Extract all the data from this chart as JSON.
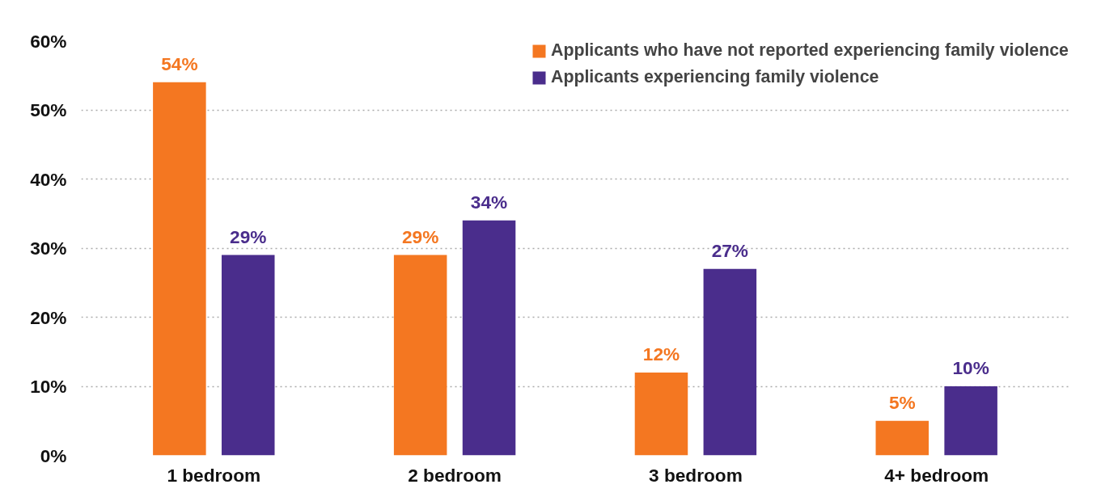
{
  "chart_data": {
    "type": "bar",
    "categories": [
      "1 bedroom",
      "2 bedroom",
      "3 bedroom",
      "4+ bedroom"
    ],
    "series": [
      {
        "name": "Applicants who have not reported experiencing family violence",
        "color": "#f47721",
        "values": [
          54,
          29,
          12,
          5
        ],
        "value_labels": [
          "54%",
          "29%",
          "12%",
          "5%"
        ]
      },
      {
        "name": "Applicants experiencing family violence",
        "color": "#4a2d8c",
        "values": [
          29,
          34,
          27,
          10
        ],
        "value_labels": [
          "29%",
          "34%",
          "27%",
          "10%"
        ]
      }
    ],
    "ylim": [
      0,
      60
    ],
    "yticks": [
      {
        "value": 0,
        "label": "0%"
      },
      {
        "value": 10,
        "label": "10%"
      },
      {
        "value": 20,
        "label": "20%"
      },
      {
        "value": 30,
        "label": "30%"
      },
      {
        "value": 40,
        "label": "40%"
      },
      {
        "value": 50,
        "label": "50%"
      },
      {
        "value": 60,
        "label": "60%"
      }
    ],
    "grid": "y",
    "legend": "top right"
  }
}
